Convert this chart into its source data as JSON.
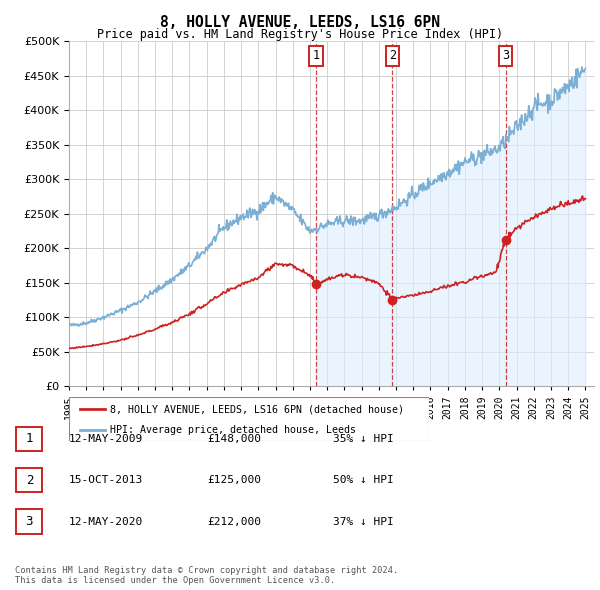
{
  "title": "8, HOLLY AVENUE, LEEDS, LS16 6PN",
  "subtitle": "Price paid vs. HM Land Registry's House Price Index (HPI)",
  "hpi_years_monthly": null,
  "sale_dates": [
    2009.36,
    2013.79,
    2020.36
  ],
  "sale_prices": [
    148000,
    125000,
    212000
  ],
  "sale_labels": [
    "1",
    "2",
    "3"
  ],
  "vline_color": "#cc2222",
  "hpi_color": "#7bafd4",
  "sale_color": "#cc2222",
  "shade_color": "#ddeeff",
  "ylim": [
    0,
    500000
  ],
  "yticks": [
    0,
    50000,
    100000,
    150000,
    200000,
    250000,
    300000,
    350000,
    400000,
    450000,
    500000
  ],
  "legend_entries": [
    "8, HOLLY AVENUE, LEEDS, LS16 6PN (detached house)",
    "HPI: Average price, detached house, Leeds"
  ],
  "table_data": [
    {
      "label": "1",
      "date": "12-MAY-2009",
      "price": "£148,000",
      "hpi": "35% ↓ HPI"
    },
    {
      "label": "2",
      "date": "15-OCT-2013",
      "price": "£125,000",
      "hpi": "50% ↓ HPI"
    },
    {
      "label": "3",
      "date": "12-MAY-2020",
      "price": "£212,000",
      "hpi": "37% ↓ HPI"
    }
  ],
  "footer": "Contains HM Land Registry data © Crown copyright and database right 2024.\nThis data is licensed under the Open Government Licence v3.0.",
  "xtick_years": [
    1995,
    1996,
    1997,
    1998,
    1999,
    2000,
    2001,
    2002,
    2003,
    2004,
    2005,
    2006,
    2007,
    2008,
    2009,
    2010,
    2011,
    2012,
    2013,
    2014,
    2015,
    2016,
    2017,
    2018,
    2019,
    2020,
    2021,
    2022,
    2023,
    2024,
    2025
  ],
  "hpi_ctrl_years": [
    1995,
    1996,
    1997,
    1998,
    1999,
    2000,
    2001,
    2002,
    2003,
    2004,
    2005,
    2006,
    2007,
    2008,
    2009,
    2010,
    2011,
    2012,
    2013,
    2014,
    2015,
    2016,
    2017,
    2018,
    2019,
    2020,
    2021,
    2022,
    2023,
    2024,
    2025
  ],
  "hpi_ctrl_values": [
    88000,
    92000,
    100000,
    110000,
    122000,
    138000,
    155000,
    175000,
    200000,
    230000,
    245000,
    255000,
    275000,
    255000,
    225000,
    235000,
    240000,
    240000,
    248000,
    260000,
    278000,
    295000,
    310000,
    325000,
    335000,
    345000,
    375000,
    405000,
    415000,
    435000,
    460000
  ],
  "red_ctrl_years": [
    1995,
    1996,
    1997,
    1998,
    1999,
    2000,
    2001,
    2002,
    2003,
    2004,
    2005,
    2006,
    2007,
    2008,
    2009.0,
    2009.36,
    2010,
    2011,
    2012,
    2013.0,
    2013.79,
    2014,
    2015,
    2016,
    2017,
    2018,
    2019,
    2019.8,
    2020.36,
    2021,
    2022,
    2023,
    2024,
    2025
  ],
  "red_ctrl_values": [
    55000,
    58000,
    62000,
    67000,
    74000,
    83000,
    93000,
    105000,
    120000,
    135000,
    148000,
    158000,
    178000,
    175000,
    162000,
    148000,
    155000,
    162000,
    158000,
    150000,
    125000,
    128000,
    132000,
    138000,
    145000,
    152000,
    160000,
    165000,
    212000,
    230000,
    245000,
    258000,
    265000,
    272000
  ]
}
